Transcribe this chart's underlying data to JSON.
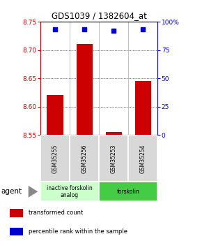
{
  "title": "GDS1039 / 1382604_at",
  "samples": [
    "GSM35255",
    "GSM35256",
    "GSM35253",
    "GSM35254"
  ],
  "bar_values": [
    8.62,
    8.71,
    8.555,
    8.645
  ],
  "percentile_values": [
    93,
    93,
    92,
    93
  ],
  "ymin": 8.55,
  "ymax": 8.75,
  "yticks": [
    8.55,
    8.6,
    8.65,
    8.7,
    8.75
  ],
  "percentile_min": 0,
  "percentile_max": 100,
  "percentile_ticks": [
    0,
    25,
    50,
    75,
    100
  ],
  "percentile_tick_labels": [
    "0",
    "25",
    "50",
    "75",
    "100%"
  ],
  "bar_color": "#cc0000",
  "dot_color": "#0000cc",
  "bar_width": 0.55,
  "groups": [
    {
      "label": "inactive forskolin\nanalog",
      "samples": [
        0,
        1
      ],
      "color": "#ccffcc"
    },
    {
      "label": "forskolin",
      "samples": [
        2,
        3
      ],
      "color": "#44cc44"
    }
  ],
  "agent_label": "agent",
  "legend_items": [
    {
      "color": "#cc0000",
      "label": "transformed count"
    },
    {
      "color": "#0000cc",
      "label": "percentile rank within the sample"
    }
  ],
  "left_axis_color": "#cc0000",
  "right_axis_color": "#0000cc",
  "grid_style": "dotted",
  "background_color": "#ffffff"
}
